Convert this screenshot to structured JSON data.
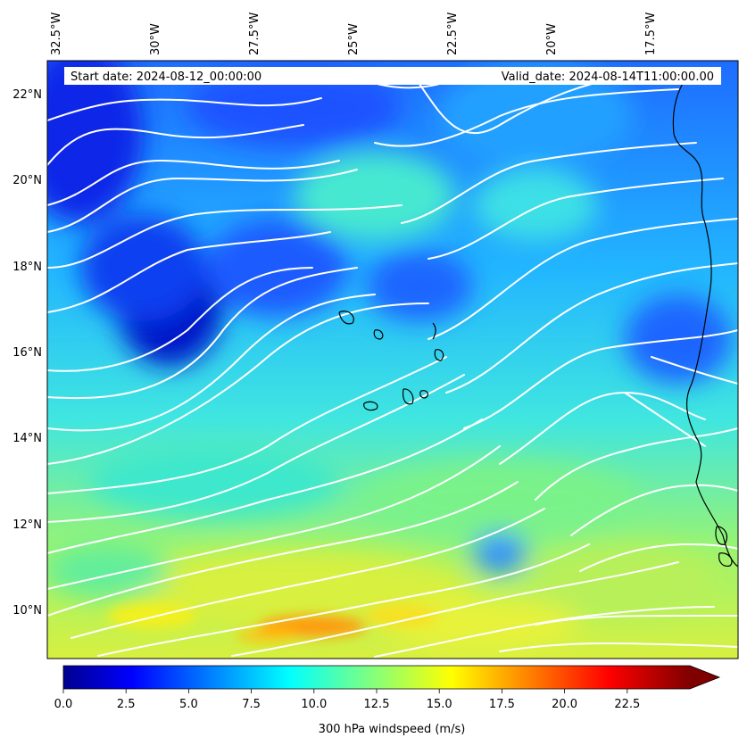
{
  "map": {
    "start_date_text": "Start date: 2024-08-12_00:00:00",
    "valid_date_text": "Valid_date: 2024-08-14T11:00:00.00",
    "extent": {
      "lon_min": -33.0,
      "lon_max": -15.0,
      "lat_min": 8.9,
      "lat_max": 22.7
    },
    "lon_ticks": [
      "32.5°W",
      "30°W",
      "27.5°W",
      "25°W",
      "22.5°W",
      "20°W",
      "17.5°W"
    ],
    "lon_tick_values": [
      -32.5,
      -30,
      -27.5,
      -25,
      -22.5,
      -20,
      -17.5
    ],
    "lat_ticks": [
      "10°N",
      "12°N",
      "14°N",
      "16°N",
      "18°N",
      "20°N",
      "22°N"
    ],
    "lat_tick_values": [
      10,
      12,
      14,
      16,
      18,
      20,
      22
    ],
    "field": "300 hPa windspeed",
    "streamline_color": "#ffffff",
    "coastline_color": "#000000"
  },
  "colorbar": {
    "label": "300 hPa windspeed (m/s)",
    "min": 0.0,
    "max": 25.0,
    "tick_values": [
      0.0,
      2.5,
      5.0,
      7.5,
      10.0,
      12.5,
      15.0,
      17.5,
      20.0,
      22.5
    ],
    "tick_labels": [
      "0.0",
      "2.5",
      "5.0",
      "7.5",
      "10.0",
      "12.5",
      "15.0",
      "17.5",
      "20.0",
      "22.5"
    ],
    "colormap": "jet",
    "extend": "max"
  }
}
